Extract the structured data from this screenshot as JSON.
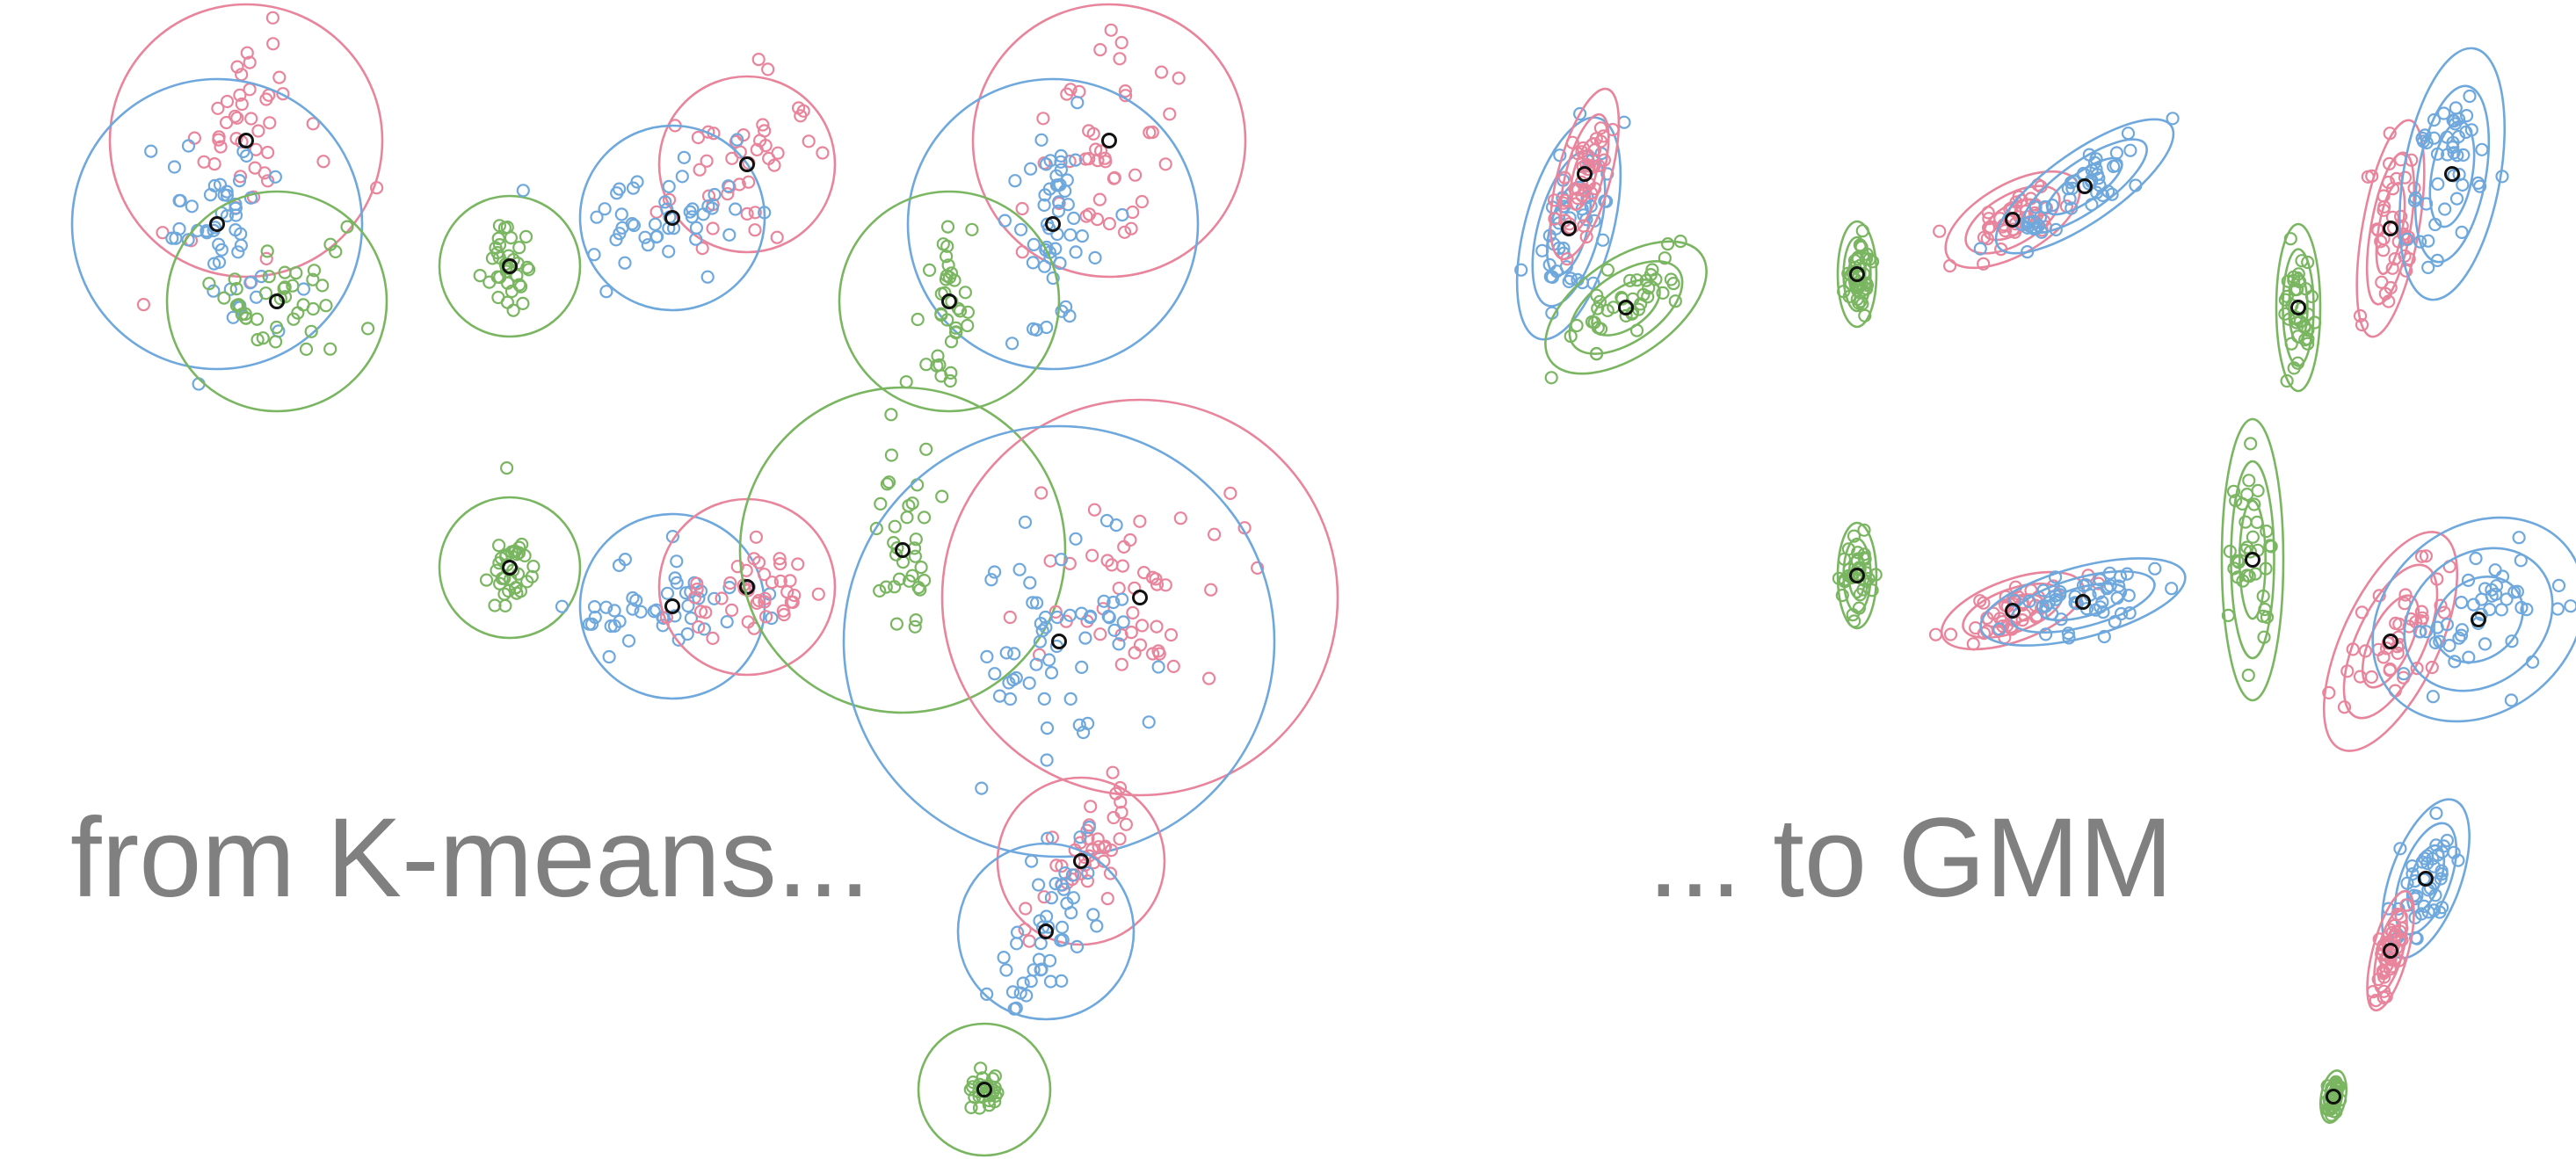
{
  "captions": {
    "left": "from K-means...",
    "right": "... to GMM"
  },
  "colors": {
    "pink": "#e8859c",
    "blue": "#6fa8dc",
    "green": "#7ab661",
    "center": "#111111",
    "caption": "#808080"
  }
}
